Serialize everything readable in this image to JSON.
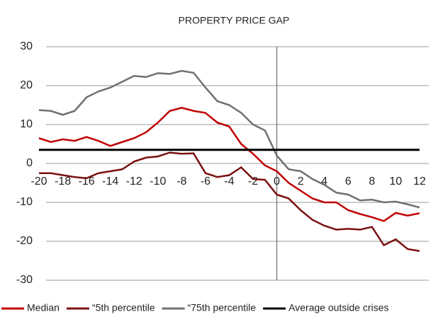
{
  "chart_data": {
    "type": "line",
    "title": "PROPERTY PRICE GAP",
    "x": [
      -20,
      -19,
      -18,
      -17,
      -16,
      -15,
      -14,
      -13,
      -12,
      -11,
      -10,
      -9,
      -8,
      -7,
      -6,
      -5,
      -4,
      -3,
      -2,
      -1,
      0,
      1,
      2,
      3,
      4,
      5,
      6,
      7,
      8,
      9,
      10,
      11,
      12
    ],
    "xlim": [
      -20,
      12
    ],
    "xticks": [
      -20,
      -18,
      -16,
      -14,
      -12,
      -10,
      -8,
      -6,
      -4,
      -2,
      0,
      2,
      4,
      6,
      8,
      10,
      12
    ],
    "ylim": [
      -30,
      30
    ],
    "yticks": [
      -30,
      -20,
      -10,
      0,
      10,
      20,
      30
    ],
    "grid": true,
    "vline": 0,
    "series": [
      {
        "name": "Median",
        "color": "#c00000",
        "values": [
          6.5,
          5.5,
          6.2,
          5.8,
          6.8,
          5.8,
          4.5,
          5.5,
          6.5,
          8,
          10.5,
          13.5,
          14.3,
          13.5,
          13,
          10.5,
          9.5,
          5,
          2.5,
          -0.5,
          -2,
          -5,
          -7,
          -9,
          -10,
          -10,
          -12,
          -13,
          -13.8,
          -14.8,
          -12.7,
          -13.4,
          -12.8
        ]
      },
      {
        "name": "“5th percentile",
        "color": "#7b1010",
        "values": [
          -2.5,
          -2.5,
          -3,
          -3.5,
          -3.8,
          -2.5,
          -2,
          -1.5,
          0.5,
          1.5,
          1.8,
          2.8,
          2.5,
          2.6,
          -2.5,
          -3.5,
          -3,
          -1,
          -4,
          -4.2,
          -8,
          -9,
          -12,
          -14.5,
          -16,
          -17,
          -16.8,
          -17,
          -16.3,
          -21,
          -19.5,
          -22,
          -22.5
        ]
      },
      {
        "name": "“75th percentile",
        "color": "#707070",
        "values": [
          13.7,
          13.5,
          12.5,
          13.5,
          17,
          18.5,
          19.5,
          21,
          22.5,
          22.2,
          23.2,
          23,
          23.8,
          23.3,
          19.5,
          16,
          15,
          13,
          10,
          8.5,
          2,
          -1.5,
          -2,
          -4,
          -5.5,
          -7.5,
          -8,
          -9.5,
          -9.3,
          -10,
          -9.8,
          -10.5,
          -11.3
        ]
      },
      {
        "name": "Average outside crises",
        "color": "#000000",
        "values": [
          3.5,
          3.5,
          3.5,
          3.5,
          3.5,
          3.5,
          3.5,
          3.5,
          3.5,
          3.5,
          3.5,
          3.5,
          3.5,
          3.5,
          3.5,
          3.5,
          3.5,
          3.5,
          3.5,
          3.5,
          3.5,
          3.5,
          3.5,
          3.5,
          3.5,
          3.5,
          3.5,
          3.5,
          3.5,
          3.5,
          3.5,
          3.5,
          3.5
        ]
      }
    ]
  }
}
